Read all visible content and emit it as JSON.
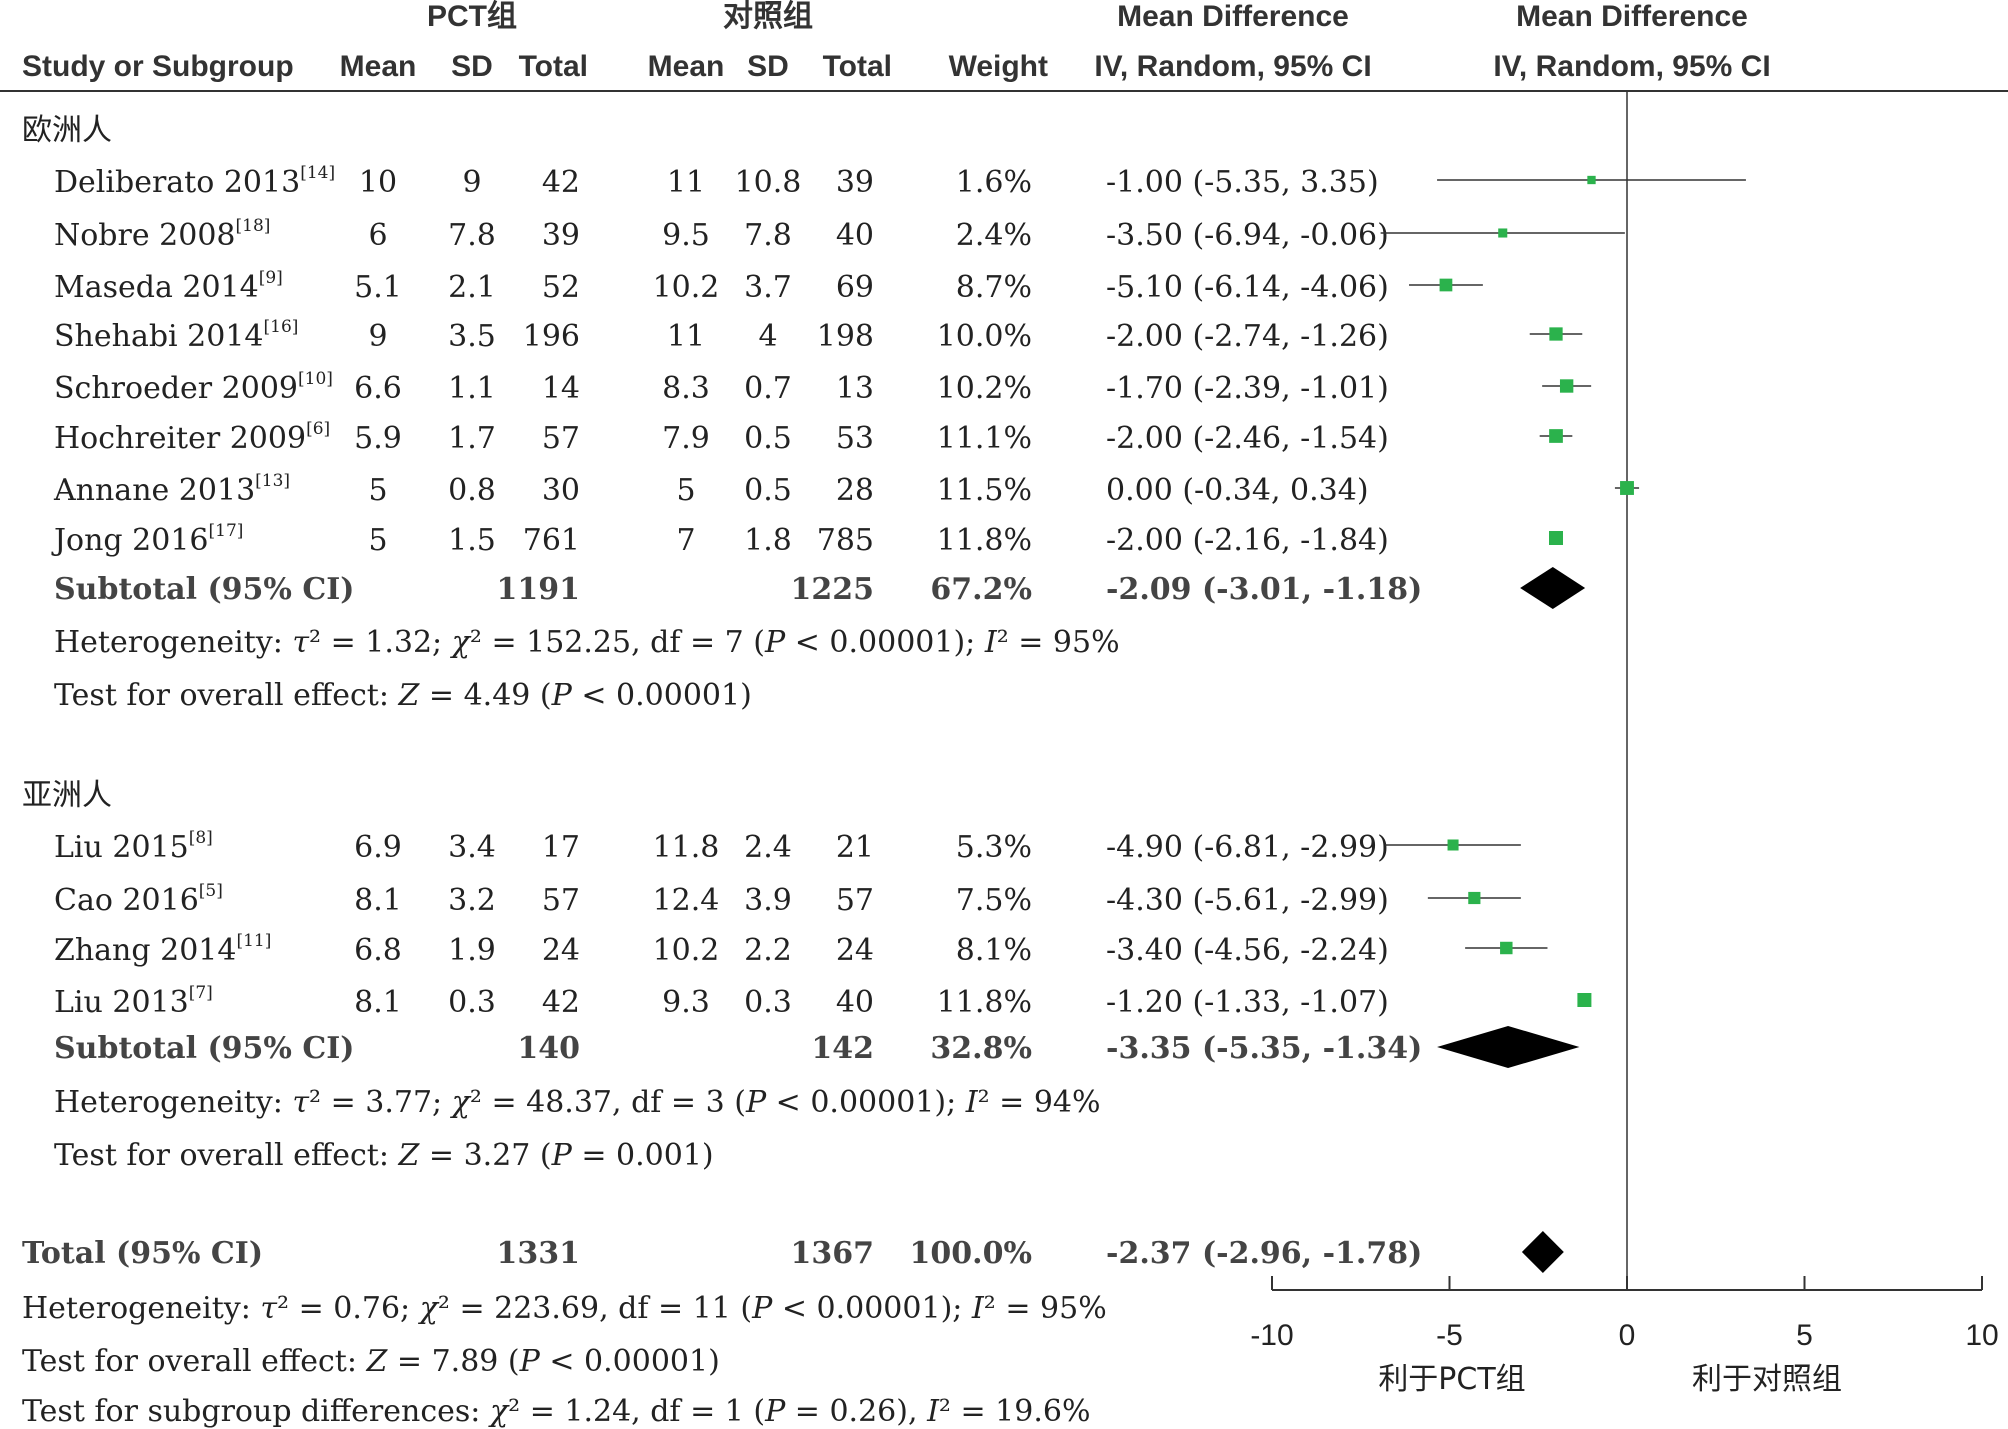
{
  "chart_data": {
    "type": "forest",
    "headers": {
      "group_pct": "PCT组",
      "group_ctrl": "对照组",
      "md_title": "Mean Difference",
      "md_method": "IV, Random, 95% CI",
      "study": "Study or Subgroup",
      "mean": "Mean",
      "sd": "SD",
      "total": "Total",
      "weight": "Weight"
    },
    "subgroups": [
      {
        "label": "欧洲人",
        "studies": [
          {
            "name": "Deliberato 2013",
            "ref": "[14]",
            "pct_mean": "10",
            "pct_sd": "9",
            "pct_total": "42",
            "ctrl_mean": "11",
            "ctrl_sd": "10.8",
            "ctrl_total": "39",
            "weight": "1.6%",
            "ci_text": "-1.00 (-5.35, 3.35)",
            "md": -1.0,
            "lo": -5.35,
            "hi": 3.35
          },
          {
            "name": "Nobre 2008",
            "ref": "[18]",
            "pct_mean": "6",
            "pct_sd": "7.8",
            "pct_total": "39",
            "ctrl_mean": "9.5",
            "ctrl_sd": "7.8",
            "ctrl_total": "40",
            "weight": "2.4%",
            "ci_text": "-3.50 (-6.94, -0.06)",
            "md": -3.5,
            "lo": -6.94,
            "hi": -0.06
          },
          {
            "name": "Maseda 2014",
            "ref": "[9]",
            "pct_mean": "5.1",
            "pct_sd": "2.1",
            "pct_total": "52",
            "ctrl_mean": "10.2",
            "ctrl_sd": "3.7",
            "ctrl_total": "69",
            "weight": "8.7%",
            "ci_text": "-5.10 (-6.14, -4.06)",
            "md": -5.1,
            "lo": -6.14,
            "hi": -4.06
          },
          {
            "name": "Shehabi 2014",
            "ref": "[16]",
            "pct_mean": "9",
            "pct_sd": "3.5",
            "pct_total": "196",
            "ctrl_mean": "11",
            "ctrl_sd": "4",
            "ctrl_total": "198",
            "weight": "10.0%",
            "ci_text": "-2.00 (-2.74, -1.26)",
            "md": -2.0,
            "lo": -2.74,
            "hi": -1.26
          },
          {
            "name": "Schroeder 2009",
            "ref": "[10]",
            "pct_mean": "6.6",
            "pct_sd": "1.1",
            "pct_total": "14",
            "ctrl_mean": "8.3",
            "ctrl_sd": "0.7",
            "ctrl_total": "13",
            "weight": "10.2%",
            "ci_text": "-1.70 (-2.39, -1.01)",
            "md": -1.7,
            "lo": -2.39,
            "hi": -1.01
          },
          {
            "name": "Hochreiter 2009",
            "ref": "[6]",
            "pct_mean": "5.9",
            "pct_sd": "1.7",
            "pct_total": "57",
            "ctrl_mean": "7.9",
            "ctrl_sd": "0.5",
            "ctrl_total": "53",
            "weight": "11.1%",
            "ci_text": "-2.00 (-2.46, -1.54)",
            "md": -2.0,
            "lo": -2.46,
            "hi": -1.54
          },
          {
            "name": "Annane 2013",
            "ref": "[13]",
            "pct_mean": "5",
            "pct_sd": "0.8",
            "pct_total": "30",
            "ctrl_mean": "5",
            "ctrl_sd": "0.5",
            "ctrl_total": "28",
            "weight": "11.5%",
            "ci_text": "0.00 (-0.34, 0.34)",
            "md": 0.0,
            "lo": -0.34,
            "hi": 0.34
          },
          {
            "name": "Jong 2016",
            "ref": "[17]",
            "pct_mean": "5",
            "pct_sd": "1.5",
            "pct_total": "761",
            "ctrl_mean": "7",
            "ctrl_sd": "1.8",
            "ctrl_total": "785",
            "weight": "11.8%",
            "ci_text": "-2.00 (-2.16, -1.84)",
            "md": -2.0,
            "lo": -2.16,
            "hi": -1.84
          }
        ],
        "subtotal": {
          "label": "Subtotal (95% CI)",
          "pct_total": "1191",
          "ctrl_total": "1225",
          "weight": "67.2%",
          "ci_text": "-2.09 (-3.01, -1.18)",
          "md": -2.09,
          "lo": -3.01,
          "hi": -1.18
        },
        "heterogeneity": {
          "prefix": "Heterogeneity: ",
          "tau": "τ",
          "tau_val": "² = 1.32; ",
          "chi": "χ",
          "chi_val": "² = 152.25, df = 7 (",
          "p": "P",
          "p_val": " < 0.00001); ",
          "i": "I",
          "i_val": "² = 95%"
        },
        "overall": {
          "prefix": "Test for overall effect: ",
          "z": "Z",
          "z_val": " = 4.49 (",
          "p": "P",
          "p_val": " < 0.00001)"
        }
      },
      {
        "label": "亚洲人",
        "studies": [
          {
            "name": "Liu 2015",
            "ref": "[8]",
            "pct_mean": "6.9",
            "pct_sd": "3.4",
            "pct_total": "17",
            "ctrl_mean": "11.8",
            "ctrl_sd": "2.4",
            "ctrl_total": "21",
            "weight": "5.3%",
            "ci_text": "-4.90 (-6.81, -2.99)",
            "md": -4.9,
            "lo": -6.81,
            "hi": -2.99
          },
          {
            "name": "Cao 2016",
            "ref": "[5]",
            "pct_mean": "8.1",
            "pct_sd": "3.2",
            "pct_total": "57",
            "ctrl_mean": "12.4",
            "ctrl_sd": "3.9",
            "ctrl_total": "57",
            "weight": "7.5%",
            "ci_text": "-4.30 (-5.61, -2.99)",
            "md": -4.3,
            "lo": -5.61,
            "hi": -2.99
          },
          {
            "name": "Zhang 2014",
            "ref": "[11]",
            "pct_mean": "6.8",
            "pct_sd": "1.9",
            "pct_total": "24",
            "ctrl_mean": "10.2",
            "ctrl_sd": "2.2",
            "ctrl_total": "24",
            "weight": "8.1%",
            "ci_text": "-3.40 (-4.56, -2.24)",
            "md": -3.4,
            "lo": -4.56,
            "hi": -2.24
          },
          {
            "name": "Liu 2013",
            "ref": "[7]",
            "pct_mean": "8.1",
            "pct_sd": "0.3",
            "pct_total": "42",
            "ctrl_mean": "9.3",
            "ctrl_sd": "0.3",
            "ctrl_total": "40",
            "weight": "11.8%",
            "ci_text": "-1.20 (-1.33, -1.07)",
            "md": -1.2,
            "lo": -1.33,
            "hi": -1.07
          }
        ],
        "subtotal": {
          "label": "Subtotal (95% CI)",
          "pct_total": "140",
          "ctrl_total": "142",
          "weight": "32.8%",
          "ci_text": "-3.35 (-5.35, -1.34)",
          "md": -3.35,
          "lo": -5.35,
          "hi": -1.34
        },
        "heterogeneity": {
          "prefix": "Heterogeneity: ",
          "tau": "τ",
          "tau_val": "² = 3.77; ",
          "chi": "χ",
          "chi_val": "² = 48.37, df = 3 (",
          "p": "P",
          "p_val": " < 0.00001); ",
          "i": "I",
          "i_val": "² = 94%"
        },
        "overall": {
          "prefix": "Test for overall effect: ",
          "z": "Z",
          "z_val": " = 3.27 (",
          "p": "P",
          "p_val": " = 0.001)"
        }
      }
    ],
    "total": {
      "label": "Total (95% CI)",
      "pct_total": "1331",
      "ctrl_total": "1367",
      "weight": "100.0%",
      "ci_text": "-2.37 (-2.96, -1.78)",
      "md": -2.37,
      "lo": -2.96,
      "hi": -1.78
    },
    "total_heterogeneity": {
      "prefix": "Heterogeneity: ",
      "tau": "τ",
      "tau_val": "² = 0.76; ",
      "chi": "χ",
      "chi_val": "² = 223.69, df = 11 (",
      "p": "P",
      "p_val": " < 0.00001); ",
      "i": "I",
      "i_val": "² = 95%"
    },
    "total_overall": {
      "prefix": "Test for overall effect: ",
      "z": "Z",
      "z_val": " = 7.89 (",
      "p": "P",
      "p_val": " < 0.00001)"
    },
    "subgroup_diff": {
      "prefix": "Test for subgroup differences: ",
      "chi": "χ",
      "chi_val": "² = 1.24, df = 1 (",
      "p": "P",
      "p_val": " = 0.26), ",
      "i": "I",
      "i_val": "² = 19.6%"
    },
    "axis": {
      "xlim": [
        -10,
        10
      ],
      "ticks": [
        -10,
        -5,
        0,
        5,
        10
      ],
      "tick_labels": [
        "-10",
        "-5",
        "0",
        "5",
        "10"
      ]
    },
    "favours": {
      "left": "利于PCT组",
      "right": "利于对照组"
    },
    "colors": {
      "square": "#2bb24c",
      "diamond": "#000000",
      "line": "#333333"
    }
  }
}
